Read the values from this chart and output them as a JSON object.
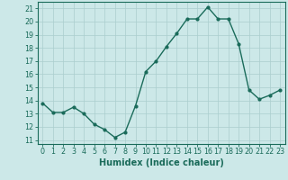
{
  "x": [
    0,
    1,
    2,
    3,
    4,
    5,
    6,
    7,
    8,
    9,
    10,
    11,
    12,
    13,
    14,
    15,
    16,
    17,
    18,
    19,
    20,
    21,
    22,
    23
  ],
  "y": [
    13.8,
    13.1,
    13.1,
    13.5,
    13.0,
    12.2,
    11.8,
    11.2,
    11.6,
    13.6,
    16.2,
    17.0,
    18.1,
    19.1,
    20.2,
    20.2,
    21.1,
    20.2,
    20.2,
    18.3,
    14.8,
    14.1,
    14.4,
    14.8
  ],
  "line_color": "#1a6b5a",
  "marker": "o",
  "marker_size": 2.0,
  "line_width": 1.0,
  "bg_color": "#cce8e8",
  "grid_color": "#aacece",
  "xlabel": "Humidex (Indice chaleur)",
  "xlabel_fontsize": 7,
  "ylabel_ticks": [
    11,
    12,
    13,
    14,
    15,
    16,
    17,
    18,
    19,
    20,
    21
  ],
  "ylim": [
    10.7,
    21.5
  ],
  "xlim": [
    -0.5,
    23.5
  ],
  "xtick_labels": [
    "0",
    "1",
    "2",
    "3",
    "4",
    "5",
    "6",
    "7",
    "8",
    "9",
    "10",
    "11",
    "12",
    "13",
    "14",
    "15",
    "16",
    "17",
    "18",
    "19",
    "20",
    "21",
    "22",
    "23"
  ],
  "tick_fontsize": 5.8
}
